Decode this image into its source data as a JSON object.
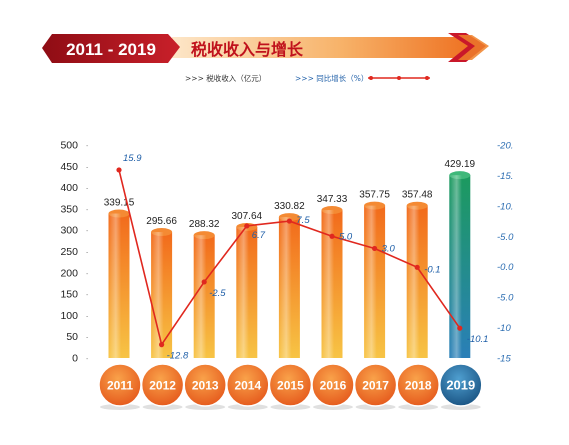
{
  "banner": {
    "year_range": "2011 - 2019",
    "title": "税收收入与增长"
  },
  "legend": {
    "revenue_label": ">>> 税收收入（亿元）",
    "growth_label": ">>> 同比增长（%）"
  },
  "colors": {
    "banner_red": "#b3121b",
    "bar_orange": "#f08a1c",
    "bar_highlight": "#1f9a66",
    "line_red": "#e0281f",
    "growth_label_blue": "#1f5fa8",
    "right_axis_blue": "#2e6fb3",
    "year_circle": "#e8641a",
    "year_circle_highlight": "#1f5f8f"
  },
  "chart_data": {
    "type": "bar",
    "categories": [
      "2011",
      "2012",
      "2013",
      "2014",
      "2015",
      "2016",
      "2017",
      "2018",
      "2019"
    ],
    "series": [
      {
        "values": [
          339.15,
          295.66,
          288.32,
          307.64,
          330.82,
          347.33,
          357.75,
          357.48,
          429.19
        ],
        "labels": [
          "339.15",
          "295.66",
          "288.32",
          "307.64",
          "330.82",
          "347.33",
          "357.75",
          "357.48",
          "429.19"
        ]
      },
      {
        "type": "line",
        "axis": "right",
        "values": [
          15.9,
          -12.8,
          -2.5,
          6.7,
          7.5,
          5.0,
          3.0,
          -0.1,
          -10.1
        ],
        "labels": [
          "15.9",
          "-12.8",
          "-2.5",
          "6.7",
          "7.5",
          "5.0",
          "3.0",
          "-0.1",
          "-10.1"
        ]
      }
    ],
    "left_axis": {
      "ylim": [
        0,
        500
      ],
      "ticks": [
        "0",
        "50",
        "100",
        "150",
        "200",
        "250",
        "300",
        "350",
        "400",
        "450",
        "500"
      ]
    },
    "right_axis": {
      "ylim": [
        -15,
        20
      ],
      "ticks": [
        "-15",
        "-10",
        "-5.0",
        "0.0",
        "5.0",
        "10.",
        "15.",
        "20."
      ]
    },
    "highlight_category": "2019",
    "grid": false
  }
}
